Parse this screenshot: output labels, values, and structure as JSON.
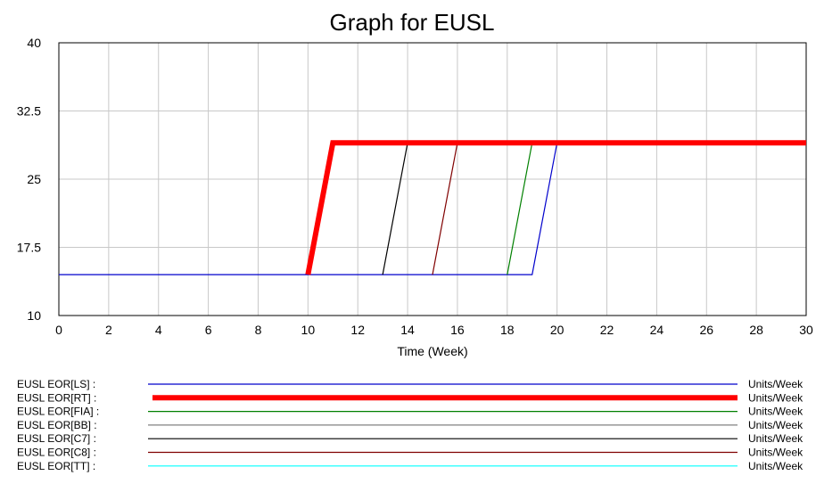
{
  "chart_data": {
    "type": "line",
    "title": "Graph for EUSL",
    "xlabel": "Time (Week)",
    "ylabel": "",
    "xlim": [
      0,
      30
    ],
    "ylim": [
      10,
      40
    ],
    "x_ticks": [
      "0",
      "2",
      "4",
      "6",
      "8",
      "10",
      "12",
      "14",
      "16",
      "18",
      "20",
      "22",
      "24",
      "26",
      "28",
      "30"
    ],
    "y_ticks": [
      "10",
      "17.5",
      "25",
      "32.5",
      "40"
    ],
    "grid": true,
    "legend_position": "bottom",
    "series": [
      {
        "name": "EUSL EOR[LS] :",
        "unit": "Units/Week",
        "color": "#0000cc",
        "width": 1.2,
        "x": [
          0,
          19,
          20,
          30
        ],
        "y": [
          14.5,
          14.5,
          29,
          29
        ]
      },
      {
        "name": "EUSL EOR[RT] :",
        "unit": "Units/Week",
        "color": "#ff0000",
        "width": 6,
        "x": [
          10,
          11,
          30
        ],
        "y": [
          14.5,
          29,
          29
        ]
      },
      {
        "name": "EUSL EOR[FIA] :",
        "unit": "Units/Week",
        "color": "#008000",
        "width": 1.2,
        "x": [
          18,
          19,
          30
        ],
        "y": [
          14.5,
          29,
          29
        ]
      },
      {
        "name": "EUSL EOR[BB] :",
        "unit": "Units/Week",
        "color": "#808080",
        "width": 1.2,
        "x": [],
        "y": []
      },
      {
        "name": "EUSL EOR[C7] :",
        "unit": "Units/Week",
        "color": "#000000",
        "width": 1.2,
        "x": [
          13,
          14,
          30
        ],
        "y": [
          14.5,
          29,
          29
        ]
      },
      {
        "name": "EUSL EOR[C8] :",
        "unit": "Units/Week",
        "color": "#800000",
        "width": 1.2,
        "x": [
          15,
          16,
          30
        ],
        "y": [
          14.5,
          29,
          29
        ]
      },
      {
        "name": "EUSL EOR[TT] :",
        "unit": "Units/Week",
        "color": "#00ffff",
        "width": 1.2,
        "x": [],
        "y": []
      }
    ]
  }
}
